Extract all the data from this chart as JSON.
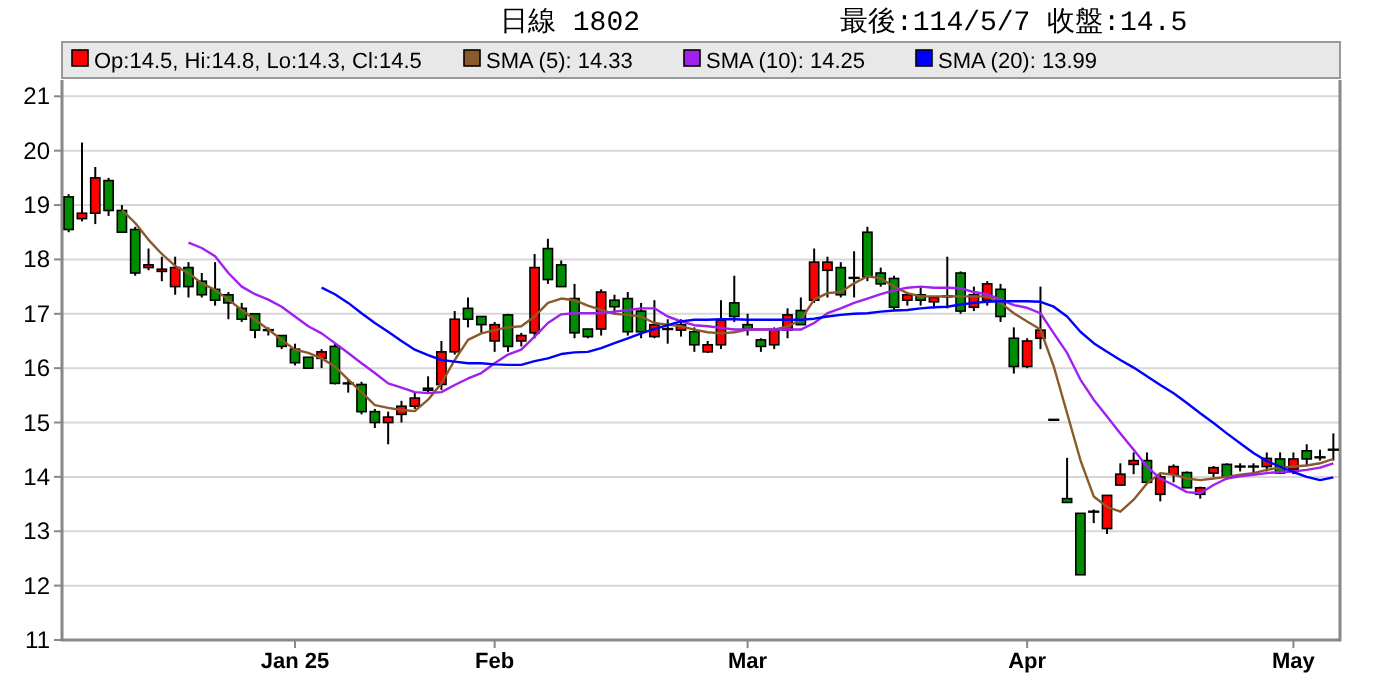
{
  "chart_data": {
    "type": "candlestick",
    "title": "日線 1802",
    "subtitle": "最後:114/5/7 收盤:14.5",
    "categories": [
      null,
      null,
      null,
      null,
      null,
      null,
      null,
      null,
      null,
      null,
      null,
      null,
      null,
      null,
      null,
      null,
      null,
      "Jan 25",
      null,
      null,
      null,
      null,
      null,
      null,
      null,
      null,
      null,
      null,
      null,
      null,
      null,
      null,
      "Feb",
      null,
      null,
      null,
      null,
      null,
      null,
      null,
      null,
      null,
      null,
      null,
      null,
      null,
      null,
      null,
      null,
      null,
      null,
      "Mar",
      null,
      null,
      null,
      null,
      null,
      null,
      null,
      null,
      null,
      null,
      null,
      null,
      null,
      null,
      null,
      null,
      null,
      null,
      null,
      null,
      "Apr",
      null,
      null,
      null,
      null,
      null,
      null,
      null,
      null,
      null,
      null,
      null,
      null,
      null,
      null,
      null,
      null,
      null,
      null,
      null,
      "May",
      null,
      null,
      null
    ],
    "ylim": [
      11,
      21.3
    ],
    "yticks": [
      11,
      12,
      13,
      14,
      15,
      16,
      17,
      18,
      19,
      20,
      21
    ],
    "grid": "y",
    "legend": "top",
    "marker": "none",
    "line_style": "solid",
    "series": [
      {
        "name": "Op:14.5, Hi:14.8, Lo:14.3, Cl:14.5",
        "colors": [
          "#008c00",
          "#ff0000",
          "#ff0000",
          "#008c00",
          "#008c00",
          "#008c00",
          "#ff0000",
          "#ff0000",
          "#ff0000",
          "#008c00",
          "#008c00",
          "#008c00",
          "#008c00",
          "#008c00",
          "#008c00",
          "#000000",
          "#008c00",
          "#008c00",
          "#008c00",
          "#ff0000",
          "#008c00",
          "#000000",
          "#008c00",
          "#008c00",
          "#ff0000",
          "#ff0000",
          "#ff0000",
          "#ff0000",
          "#ff0000",
          "#ff0000",
          "#008c00",
          "#008c00",
          "#ff0000",
          "#008c00",
          "#ff0000",
          "#ff0000",
          "#008c00",
          "#008c00",
          "#008c00",
          "#008c00",
          "#ff0000",
          "#008c00",
          "#008c00",
          "#008c00",
          "#ff0000",
          "#000000",
          "#ff0000",
          "#008c00",
          "#ff0000",
          "#ff0000",
          "#008c00",
          "#008c00",
          "#008c00",
          "#ff0000",
          "#ff0000",
          "#008c00",
          "#ff0000",
          "#ff0000",
          "#008c00",
          "#000000",
          "#008c00",
          "#008c00",
          "#008c00",
          "#ff0000",
          "#008c00",
          "#ff0000",
          "#000000",
          "#008c00",
          "#ff0000",
          "#ff0000",
          "#008c00",
          "#008c00",
          "#ff0000",
          "#ff0000",
          "#000000",
          "#008c00",
          "#008c00",
          "#000000",
          "#ff0000",
          "#ff0000",
          "#ff0000",
          "#008c00",
          "#ff0000",
          "#ff0000",
          "#008c00",
          "#ff0000",
          "#ff0000",
          "#008c00",
          "#000000",
          "#000000",
          "#ff0000",
          "#008c00",
          "#ff0000",
          "#008c00",
          "#000000",
          "#000000"
        ],
        "ohlc": [
          [
            19.15,
            19.2,
            18.5,
            18.55
          ],
          [
            18.75,
            20.15,
            18.7,
            18.85
          ],
          [
            18.85,
            19.7,
            18.65,
            19.5
          ],
          [
            19.45,
            19.5,
            18.8,
            18.9
          ],
          [
            18.9,
            19.0,
            18.5,
            18.5
          ],
          [
            18.55,
            18.6,
            17.7,
            17.75
          ],
          [
            17.85,
            18.2,
            17.8,
            17.9
          ],
          [
            17.78,
            18.05,
            17.6,
            17.82
          ],
          [
            17.5,
            18.05,
            17.35,
            17.85
          ],
          [
            17.85,
            17.95,
            17.3,
            17.5
          ],
          [
            17.6,
            17.75,
            17.3,
            17.35
          ],
          [
            17.45,
            17.95,
            17.15,
            17.25
          ],
          [
            17.35,
            17.4,
            16.9,
            17.2
          ],
          [
            17.1,
            17.2,
            16.85,
            16.9
          ],
          [
            17.0,
            17.0,
            16.55,
            16.7
          ],
          [
            16.7,
            16.75,
            16.6,
            16.7
          ],
          [
            16.6,
            16.6,
            16.35,
            16.4
          ],
          [
            16.35,
            16.45,
            16.05,
            16.1
          ],
          [
            16.2,
            16.2,
            16.0,
            16.0
          ],
          [
            16.18,
            16.35,
            16.0,
            16.3
          ],
          [
            16.4,
            16.45,
            15.7,
            15.72
          ],
          [
            15.72,
            15.8,
            15.55,
            15.72
          ],
          [
            15.7,
            15.75,
            15.15,
            15.2
          ],
          [
            15.2,
            15.25,
            14.9,
            15.0
          ],
          [
            15.0,
            15.2,
            14.6,
            15.1
          ],
          [
            15.15,
            15.4,
            15.0,
            15.3
          ],
          [
            15.3,
            15.55,
            15.25,
            15.45
          ],
          [
            15.6,
            15.85,
            15.55,
            15.63
          ],
          [
            15.7,
            16.5,
            15.6,
            16.3
          ],
          [
            16.3,
            17.05,
            16.25,
            16.9
          ],
          [
            17.1,
            17.3,
            16.75,
            16.9
          ],
          [
            16.95,
            16.95,
            16.65,
            16.8
          ],
          [
            16.5,
            16.85,
            16.3,
            16.8
          ],
          [
            16.98,
            17.0,
            16.3,
            16.4
          ],
          [
            16.5,
            16.65,
            16.4,
            16.6
          ],
          [
            16.65,
            18.1,
            16.55,
            17.85
          ],
          [
            18.2,
            18.38,
            17.55,
            17.63
          ],
          [
            17.9,
            17.98,
            17.5,
            17.5
          ],
          [
            17.28,
            17.55,
            16.55,
            16.65
          ],
          [
            16.72,
            16.72,
            16.55,
            16.58
          ],
          [
            16.72,
            17.45,
            16.6,
            17.4
          ],
          [
            17.25,
            17.35,
            17.0,
            17.13
          ],
          [
            17.28,
            17.4,
            16.6,
            16.67
          ],
          [
            17.05,
            17.2,
            16.55,
            16.67
          ],
          [
            16.58,
            17.25,
            16.55,
            16.8
          ],
          [
            16.72,
            16.9,
            16.45,
            16.72
          ],
          [
            16.7,
            16.9,
            16.58,
            16.8
          ],
          [
            16.67,
            16.75,
            16.3,
            16.43
          ],
          [
            16.3,
            16.5,
            16.28,
            16.43
          ],
          [
            16.43,
            17.25,
            16.35,
            16.88
          ],
          [
            17.2,
            17.7,
            16.85,
            16.95
          ],
          [
            16.8,
            17.0,
            16.6,
            16.72
          ],
          [
            16.52,
            16.55,
            16.3,
            16.4
          ],
          [
            16.43,
            16.75,
            16.35,
            16.7
          ],
          [
            16.7,
            17.1,
            16.55,
            16.98
          ],
          [
            17.06,
            17.3,
            16.8,
            16.8
          ],
          [
            17.25,
            18.2,
            17.2,
            17.95
          ],
          [
            17.8,
            18.05,
            17.3,
            17.95
          ],
          [
            17.85,
            17.95,
            17.3,
            17.35
          ],
          [
            17.66,
            18.15,
            17.3,
            17.66
          ],
          [
            18.5,
            18.6,
            17.6,
            17.68
          ],
          [
            17.75,
            17.85,
            17.5,
            17.55
          ],
          [
            17.65,
            17.7,
            17.05,
            17.12
          ],
          [
            17.25,
            17.35,
            17.15,
            17.35
          ],
          [
            17.35,
            17.5,
            17.15,
            17.25
          ],
          [
            17.22,
            17.3,
            17.1,
            17.3
          ],
          [
            17.32,
            18.05,
            17.1,
            17.32
          ],
          [
            17.75,
            17.78,
            17.0,
            17.05
          ],
          [
            17.12,
            17.5,
            17.05,
            17.35
          ],
          [
            17.25,
            17.6,
            17.15,
            17.55
          ],
          [
            17.45,
            17.55,
            16.85,
            16.95
          ],
          [
            16.55,
            16.75,
            15.9,
            16.03
          ],
          [
            16.03,
            16.55,
            16.0,
            16.5
          ],
          [
            16.55,
            17.5,
            16.35,
            16.7
          ],
          [
            15.05,
            15.05,
            15.05,
            15.05
          ],
          [
            13.6,
            14.35,
            13.53,
            13.53
          ],
          [
            13.33,
            13.33,
            12.2,
            12.2
          ],
          [
            13.36,
            13.4,
            13.15,
            13.36
          ],
          [
            13.05,
            13.66,
            12.95,
            13.66
          ],
          [
            13.85,
            14.25,
            13.85,
            14.05
          ],
          [
            14.23,
            14.45,
            14.05,
            14.3
          ],
          [
            14.3,
            14.45,
            13.9,
            13.9
          ],
          [
            13.68,
            14.05,
            13.55,
            14.0
          ],
          [
            14.05,
            14.23,
            13.9,
            14.19
          ],
          [
            14.08,
            14.1,
            13.8,
            13.8
          ],
          [
            13.68,
            13.82,
            13.6,
            13.8
          ],
          [
            14.07,
            14.2,
            14.0,
            14.17
          ],
          [
            14.23,
            14.25,
            13.95,
            14.0
          ],
          [
            14.19,
            14.25,
            14.1,
            14.19
          ],
          [
            14.19,
            14.25,
            14.05,
            14.19
          ],
          [
            14.19,
            14.45,
            14.1,
            14.34
          ],
          [
            14.33,
            14.45,
            14.05,
            14.07
          ],
          [
            14.14,
            14.45,
            14.05,
            14.33
          ],
          [
            14.48,
            14.6,
            14.2,
            14.33
          ],
          [
            14.36,
            14.5,
            14.3,
            14.36
          ],
          [
            14.5,
            14.8,
            14.3,
            14.5
          ]
        ]
      },
      {
        "type": "line",
        "name": "SMA (5): 14.33",
        "color": "#8b5a2b",
        "values": [
          null,
          null,
          null,
          null,
          18.91,
          18.67,
          18.36,
          18.1,
          17.88,
          17.75,
          17.56,
          17.44,
          17.26,
          17.07,
          16.89,
          16.71,
          16.52,
          16.34,
          16.28,
          16.18,
          16.03,
          15.79,
          15.56,
          15.32,
          15.27,
          15.23,
          15.21,
          15.42,
          15.72,
          16.15,
          16.52,
          16.64,
          16.7,
          16.75,
          16.77,
          16.95,
          17.2,
          17.28,
          17.25,
          17.15,
          17.07,
          17.0,
          16.98,
          16.95,
          16.83,
          16.8,
          16.77,
          16.71,
          16.66,
          16.64,
          16.66,
          16.71,
          16.71,
          16.71,
          16.77,
          16.89,
          17.26,
          17.38,
          17.4,
          17.56,
          17.69,
          17.65,
          17.5,
          17.38,
          17.32,
          17.32,
          17.32,
          17.32,
          17.32,
          17.32,
          17.2,
          17.01,
          16.86,
          16.71,
          16.03,
          15.17,
          14.31,
          13.64,
          13.45,
          13.36,
          13.58,
          13.88,
          14.07,
          14.04,
          13.97,
          13.94,
          13.97,
          14.0,
          14.04,
          14.07,
          14.13,
          14.17,
          14.19,
          14.21,
          14.25,
          14.33
        ]
      },
      {
        "type": "line",
        "name": "SMA (10): 14.25",
        "color": "#a020f0",
        "values": [
          null,
          null,
          null,
          null,
          null,
          null,
          null,
          null,
          null,
          18.31,
          18.21,
          18.06,
          17.75,
          17.5,
          17.36,
          17.26,
          17.13,
          16.95,
          16.77,
          16.64,
          16.46,
          16.28,
          16.09,
          15.91,
          15.72,
          15.64,
          15.56,
          15.54,
          15.56,
          15.69,
          15.81,
          15.91,
          16.09,
          16.25,
          16.34,
          16.58,
          16.83,
          16.99,
          17.01,
          17.01,
          17.01,
          17.04,
          17.07,
          17.1,
          17.1,
          16.95,
          16.86,
          16.79,
          16.77,
          16.74,
          16.71,
          16.71,
          16.71,
          16.71,
          16.71,
          16.71,
          16.83,
          17.01,
          17.1,
          17.2,
          17.28,
          17.36,
          17.43,
          17.48,
          17.5,
          17.48,
          17.48,
          17.47,
          17.4,
          17.36,
          17.26,
          17.16,
          17.11,
          17.01,
          16.64,
          16.28,
          15.79,
          15.42,
          15.11,
          14.8,
          14.5,
          14.19,
          13.97,
          13.85,
          13.72,
          13.7,
          13.85,
          13.97,
          14.01,
          14.04,
          14.07,
          14.09,
          14.1,
          14.13,
          14.17,
          14.25
        ]
      },
      {
        "type": "line",
        "name": "SMA (20): 13.99",
        "color": "#0000ff",
        "values": [
          null,
          null,
          null,
          null,
          null,
          null,
          null,
          null,
          null,
          null,
          null,
          null,
          null,
          null,
          null,
          null,
          null,
          null,
          null,
          17.48,
          17.36,
          17.2,
          17.01,
          16.83,
          16.67,
          16.5,
          16.34,
          16.24,
          16.15,
          16.12,
          16.09,
          16.09,
          16.07,
          16.06,
          16.06,
          16.13,
          16.18,
          16.26,
          16.29,
          16.3,
          16.37,
          16.46,
          16.55,
          16.64,
          16.72,
          16.79,
          16.86,
          16.89,
          16.89,
          16.9,
          16.9,
          16.89,
          16.89,
          16.89,
          16.89,
          16.89,
          16.91,
          16.95,
          16.98,
          17.0,
          17.01,
          17.04,
          17.06,
          17.07,
          17.1,
          17.12,
          17.13,
          17.17,
          17.2,
          17.22,
          17.23,
          17.23,
          17.23,
          17.22,
          17.13,
          16.95,
          16.67,
          16.46,
          16.3,
          16.15,
          16.01,
          15.85,
          15.69,
          15.54,
          15.36,
          15.17,
          14.99,
          14.8,
          14.62,
          14.44,
          14.29,
          14.19,
          14.09,
          14.0,
          13.94,
          13.99
        ]
      }
    ]
  }
}
